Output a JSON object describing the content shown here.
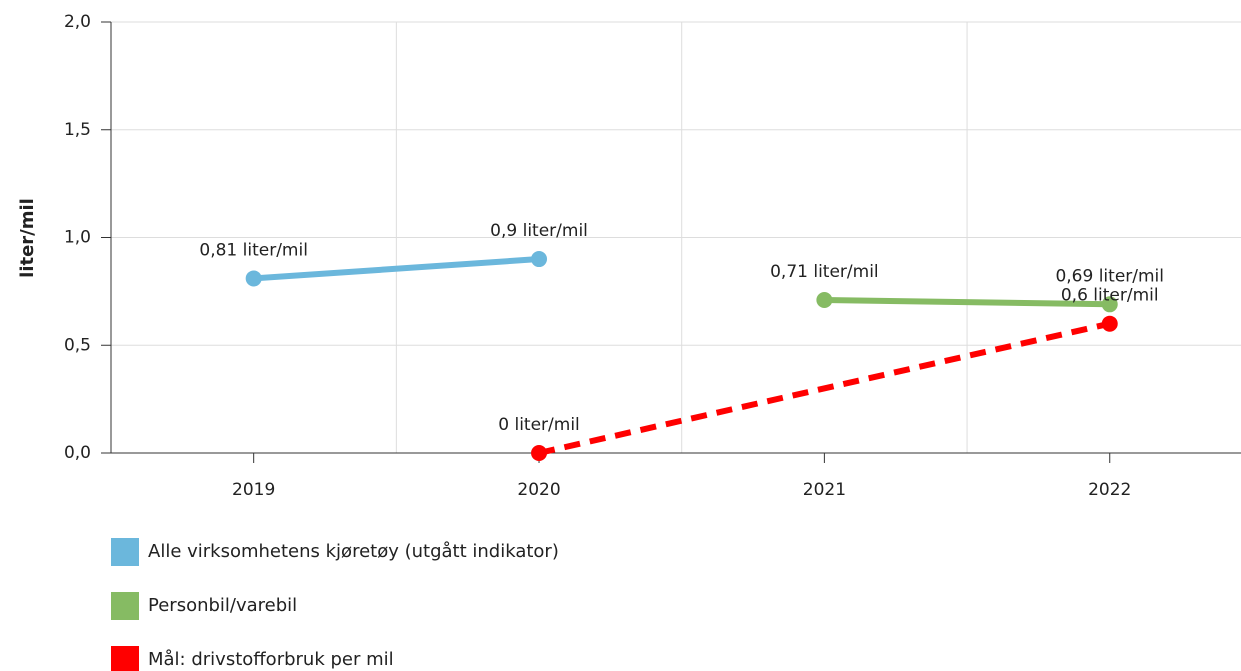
{
  "chart_data": {
    "type": "line",
    "ylabel": "liter/mil",
    "xlim": [
      2018.5,
      2022.46
    ],
    "xticks": [
      2019,
      2020,
      2021,
      2022
    ],
    "x_grid": [
      2019.5,
      2020.5,
      2021.5
    ],
    "ylim": [
      0,
      2
    ],
    "yticks": [
      {
        "value": 0,
        "label": "0,0"
      },
      {
        "value": 0.5,
        "label": "0,5"
      },
      {
        "value": 1,
        "label": "1,0"
      },
      {
        "value": 1.5,
        "label": "1,5"
      },
      {
        "value": 2,
        "label": "2,0"
      }
    ],
    "grid": true,
    "legend": "bottom-left",
    "series": [
      {
        "name": "Alle virksomhetens kjøretøy (utgått indikator)",
        "color": "#6bb7dc",
        "x": [
          2019,
          2020
        ],
        "values": [
          0.81,
          0.9
        ],
        "value_labels": [
          "0,81 liter/mil",
          "0,9 liter/mil"
        ]
      },
      {
        "name": "Personbil/varebil",
        "color": "#86bb63",
        "x": [
          2021,
          2022
        ],
        "values": [
          0.71,
          0.69
        ],
        "value_labels": [
          "0,71 liter/mil",
          "0,69 liter/mil"
        ]
      },
      {
        "name": "Mål: drivstofforbruk per mil",
        "color": "#ff0000",
        "dashed": true,
        "x": [
          2020,
          2022
        ],
        "values": [
          0,
          0.6
        ],
        "value_labels": [
          "0 liter/mil",
          "0,6 liter/mil"
        ]
      }
    ]
  }
}
